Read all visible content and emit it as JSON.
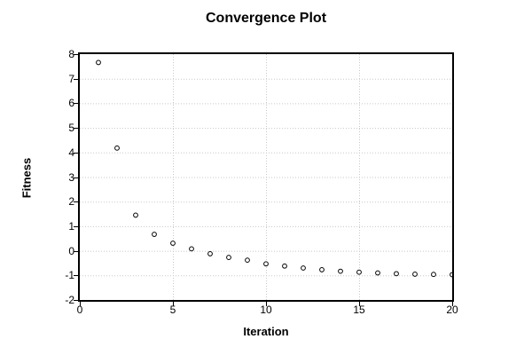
{
  "chart_data": {
    "type": "scatter",
    "title": "Convergence Plot",
    "xlabel": "Iteration",
    "ylabel": "Fitness",
    "x": [
      1,
      2,
      3,
      4,
      5,
      6,
      7,
      8,
      9,
      10,
      11,
      12,
      13,
      14,
      15,
      16,
      17,
      18,
      19,
      20
    ],
    "y": [
      7.66,
      4.18,
      1.45,
      0.67,
      0.31,
      0.08,
      -0.12,
      -0.27,
      -0.38,
      -0.53,
      -0.62,
      -0.7,
      -0.77,
      -0.83,
      -0.87,
      -0.9,
      -0.93,
      -0.95,
      -0.96,
      -0.97
    ],
    "xlim": [
      0,
      20
    ],
    "ylim": [
      -2,
      8
    ],
    "x_ticks": [
      0,
      5,
      10,
      15,
      20
    ],
    "y_ticks": [
      -2,
      -1,
      0,
      1,
      2,
      3,
      4,
      5,
      6,
      7,
      8
    ],
    "grid": true,
    "legend": "none",
    "marker": "open-circle",
    "colors": {
      "background": "#ffffff",
      "frame": "#000000",
      "grid": "#c8c8c8",
      "marker_stroke": "#000000",
      "marker_fill": "#ffffff",
      "text": "#000000"
    }
  }
}
